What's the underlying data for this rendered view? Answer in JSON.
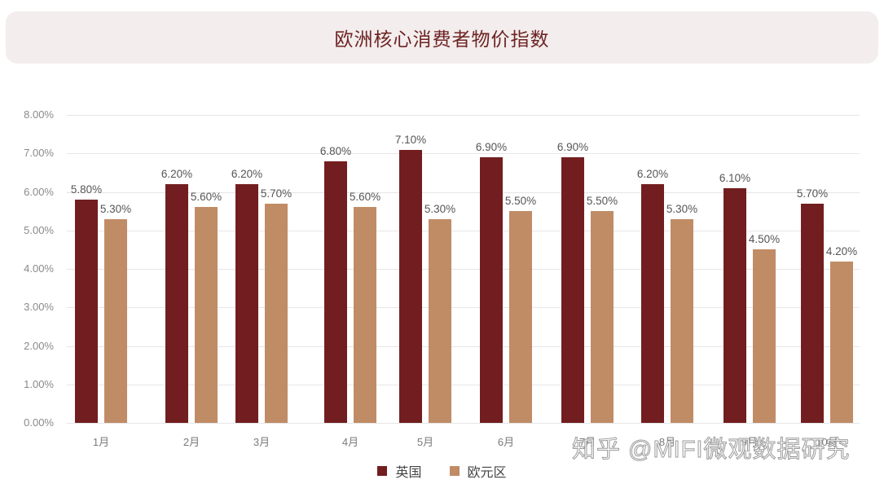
{
  "header": {
    "title": "欧洲核心消费者物价指数"
  },
  "colors": {
    "uk": "#721e20",
    "eurozone": "#c08c66",
    "title": "#6e2324",
    "title_bg": "#f3eded"
  },
  "legend": [
    {
      "label": "英国",
      "color": "#721e20"
    },
    {
      "label": "欧元区",
      "color": "#c08c66"
    }
  ],
  "watermark": "知乎 @MIFI微观数据研究",
  "chart_data": {
    "type": "bar",
    "title": "欧洲核心消费者物价指数",
    "xlabel": "",
    "ylabel": "",
    "ylim": [
      0,
      8
    ],
    "yticks": [
      "0.00%",
      "1.00%",
      "2.00%",
      "3.00%",
      "4.00%",
      "5.00%",
      "6.00%",
      "7.00%",
      "8.00%"
    ],
    "grid": true,
    "legend_position": "bottom",
    "categories": [
      "1月",
      "2月",
      "3月",
      "4月",
      "5月",
      "6月",
      "7月",
      "8月",
      "9月",
      "10月"
    ],
    "series": [
      {
        "name": "英国",
        "values": [
          5.8,
          6.2,
          6.2,
          6.8,
          7.1,
          6.9,
          6.9,
          6.2,
          6.1,
          5.7
        ],
        "labels": [
          "5.80%",
          "6.20%",
          "6.20%",
          "6.80%",
          "7.10%",
          "6.90%",
          "6.90%",
          "6.20%",
          "6.10%",
          "5.70%"
        ]
      },
      {
        "name": "欧元区",
        "values": [
          5.3,
          5.6,
          5.7,
          5.6,
          5.3,
          5.5,
          5.5,
          5.3,
          4.5,
          4.2
        ],
        "labels": [
          "5.30%",
          "5.60%",
          "5.70%",
          "5.60%",
          "5.30%",
          "5.50%",
          "5.50%",
          "5.30%",
          "4.50%",
          "4.20%"
        ]
      }
    ]
  }
}
